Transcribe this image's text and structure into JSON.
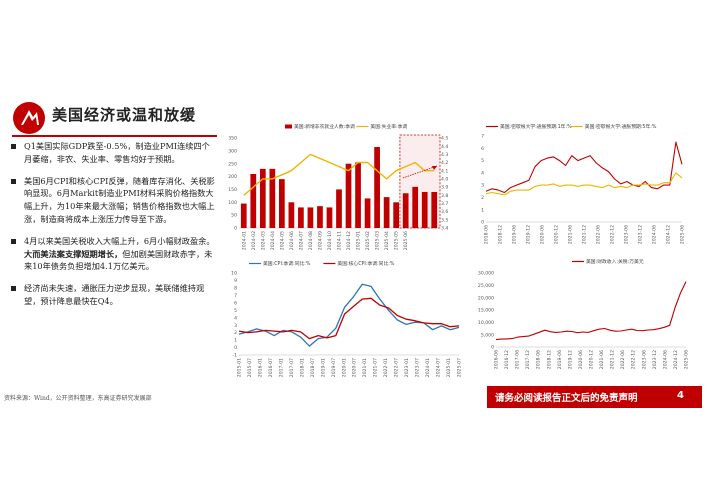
{
  "slide": {
    "title": "美国经济或温和放缓",
    "bullets": [
      {
        "text": "Q1美国实际GDP跌至-0.5%，制造业PMI连续四个月萎缩，非农、失业率、零售均好于预期。",
        "bold": ""
      },
      {
        "text": "美国6月CPI和核心CPI反弹，随着库存消化、关税影响显现。6月Markit制造业PMI材料采购价格指数大幅上升，为10年来最大涨幅；销售价格指数也大幅上涨，制造商将成本上涨压力传导至下游。",
        "bold": ""
      },
      {
        "text": "4月以来美国关税收入大幅上升，6月小幅财政盈余。",
        "bold": "大而美法案支撑短期增长，",
        "after": "但加剧美国财政赤字，未来10年债务负担增加4.1万亿美元。"
      },
      {
        "text": "经济尚未失速，通胀压力逆步显现，美联储维持观望，预计降息最快在Q4。",
        "bold": ""
      }
    ],
    "source": "资料来源：Wind，公开资料整理，东高证券研究发展部",
    "footer": "请务必阅读报告正文后的免责声明",
    "page": "4"
  },
  "colors": {
    "red": "#c00000",
    "gold": "#f0b400",
    "blue": "#2e75b6"
  },
  "chart_data": [
    {
      "id": "payrolls-unemployment",
      "type": "bar",
      "series": [
        {
          "name": "美国:新增非农就业人数:季调",
          "type": "bar",
          "axis": "left",
          "values": [
            95,
            210,
            230,
            230,
            190,
            100,
            80,
            80,
            85,
            80,
            150,
            250,
            255,
            115,
            315,
            120,
            100,
            135,
            160,
            140,
            140
          ]
        },
        {
          "name": "美国:失业率:季调",
          "type": "line",
          "axis": "right",
          "values": [
            3.8,
            3.9,
            4.0,
            4.0,
            4.05,
            4.1,
            4.2,
            4.3,
            4.25,
            4.2,
            4.15,
            4.1,
            4.2,
            4.2,
            4.1,
            4.0,
            4.1,
            4.15,
            4.2,
            4.1,
            4.1
          ]
        }
      ],
      "categories": [
        "2024-01",
        "2024-02",
        "2024-03",
        "2024-04",
        "2024-05",
        "2024-06",
        "2024-07",
        "2024-08",
        "2024-09",
        "2024-10",
        "2024-11",
        "2024-12",
        "2025-01",
        "2025-02",
        "2025-03",
        "2025-04",
        "2025-05",
        "2025-06",
        "2025-07",
        "2025-08",
        "2025-09"
      ],
      "ylim_left": [
        0,
        350
      ],
      "yticks_left": [
        "0",
        "50",
        "100",
        "150",
        "200",
        "250",
        "300",
        "350"
      ],
      "ylim_right": [
        3.4,
        4.5
      ],
      "yticks_right": [
        "3.4",
        "3.5",
        "3.6",
        "3.7",
        "3.8",
        "3.9",
        "4.0",
        "4.1",
        "4.2",
        "4.3",
        "4.4",
        "4.5"
      ],
      "xticks": [
        "2024-01",
        "2024-02",
        "2024-03",
        "2024-04",
        "2024-05",
        "2024-06",
        "2024-07",
        "2024-08",
        "2024-09",
        "2024-10",
        "2024-11",
        "2024-12",
        "2025-01",
        "2025-02",
        "2025-03",
        "2025-04",
        "2025-05",
        "2025-06"
      ],
      "highlight": {
        "from": 17,
        "to": 20
      }
    },
    {
      "id": "inflation-expectations",
      "type": "line",
      "series": [
        {
          "name": "美国:密歇根大学:通胀预期:1年:%",
          "color": "#c00000",
          "values": [
            2.5,
            2.7,
            2.6,
            2.4,
            2.8,
            3.0,
            3.2,
            3.4,
            4.5,
            5.0,
            5.2,
            5.3,
            5.0,
            4.6,
            5.4,
            5.0,
            5.2,
            5.4,
            4.8,
            4.4,
            4.1,
            3.5,
            3.1,
            3.3,
            3.0,
            2.9,
            3.3,
            2.8,
            2.7,
            3.0,
            3.0,
            6.5,
            4.7
          ]
        },
        {
          "name": "美国:密歇根大学:通胀预期:5年:%",
          "color": "#f0b400",
          "values": [
            2.3,
            2.4,
            2.3,
            2.2,
            2.5,
            2.6,
            2.6,
            2.6,
            2.9,
            3.0,
            3.0,
            3.1,
            2.9,
            3.0,
            3.0,
            2.9,
            3.0,
            3.0,
            2.9,
            2.8,
            3.0,
            2.8,
            2.9,
            2.8,
            3.0,
            3.0,
            3.1,
            3.0,
            3.0,
            3.2,
            3.2,
            4.0,
            3.6
          ]
        }
      ],
      "xticks": [
        "2018-06",
        "2018-12",
        "2019-06",
        "2019-12",
        "2020-06",
        "2020-12",
        "2021-06",
        "2021-12",
        "2022-06",
        "2022-12",
        "2023-06",
        "2023-12",
        "2024-06",
        "2024-12",
        "2025-06"
      ],
      "ylim": [
        0,
        7
      ],
      "yticks": [
        "0",
        "1",
        "2",
        "3",
        "4",
        "5",
        "6",
        "7"
      ]
    },
    {
      "id": "cpi",
      "type": "line",
      "series": [
        {
          "name": "美国:CPI:季调:同比:%",
          "color": "#2e75b6",
          "values": [
            1.8,
            2.1,
            2.5,
            2.2,
            1.6,
            2.3,
            2.1,
            1.4,
            0.2,
            1.2,
            1.4,
            2.6,
            5.4,
            6.8,
            8.5,
            8.2,
            6.5,
            5.0,
            3.7,
            3.1,
            3.4,
            3.3,
            2.4,
            2.9,
            2.4,
            2.7
          ]
        },
        {
          "name": "美国:核心CPI:季调:同比:%",
          "color": "#c00000",
          "values": [
            2.2,
            2.0,
            2.1,
            2.3,
            2.2,
            2.1,
            2.3,
            2.1,
            1.2,
            1.6,
            1.3,
            1.6,
            4.5,
            5.5,
            6.5,
            6.6,
            5.7,
            5.3,
            4.3,
            3.8,
            3.6,
            3.3,
            3.2,
            3.2,
            2.8,
            2.9
          ]
        }
      ],
      "xticks": [
        "2015-01",
        "2015-07",
        "2016-01",
        "2016-07",
        "2017-01",
        "2017-07",
        "2018-01",
        "2018-07",
        "2019-01",
        "2019-07",
        "2020-01",
        "2020-07",
        "2021-01",
        "2021-07",
        "2022-01",
        "2022-07",
        "2023-01",
        "2023-07",
        "2024-01",
        "2024-07",
        "2025-01",
        "2025-07"
      ],
      "ylim": [
        -1,
        10
      ],
      "yticks": [
        "-1",
        "0",
        "1",
        "2",
        "3",
        "4",
        "5",
        "6",
        "7",
        "8",
        "9",
        "10"
      ]
    },
    {
      "id": "customs-duties",
      "type": "line",
      "series": [
        {
          "name": "美国:财政收入:关税:万美元",
          "color": "#c00000",
          "values": [
            3000,
            3200,
            3300,
            3400,
            4000,
            4200,
            4400,
            5200,
            6000,
            6800,
            6200,
            5900,
            6100,
            6400,
            6300,
            5800,
            6100,
            5900,
            6600,
            7200,
            7500,
            6800,
            6400,
            6500,
            6900,
            7200,
            6700,
            6600,
            6900,
            7000,
            7400,
            8000,
            8800,
            16000,
            22000,
            26500
          ]
        }
      ],
      "xticks": [
        "2016-06",
        "2016-12",
        "2017-06",
        "2017-12",
        "2018-06",
        "2018-12",
        "2019-06",
        "2019-12",
        "2020-06",
        "2020-12",
        "2021-06",
        "2021-12",
        "2022-06",
        "2022-12",
        "2023-06",
        "2023-12",
        "2024-06",
        "2024-12",
        "2025-06"
      ],
      "ylim": [
        0,
        30000
      ],
      "yticks": [
        "0",
        "5,000",
        "10,000",
        "15,000",
        "20,000",
        "25,000",
        "30,000"
      ]
    }
  ]
}
